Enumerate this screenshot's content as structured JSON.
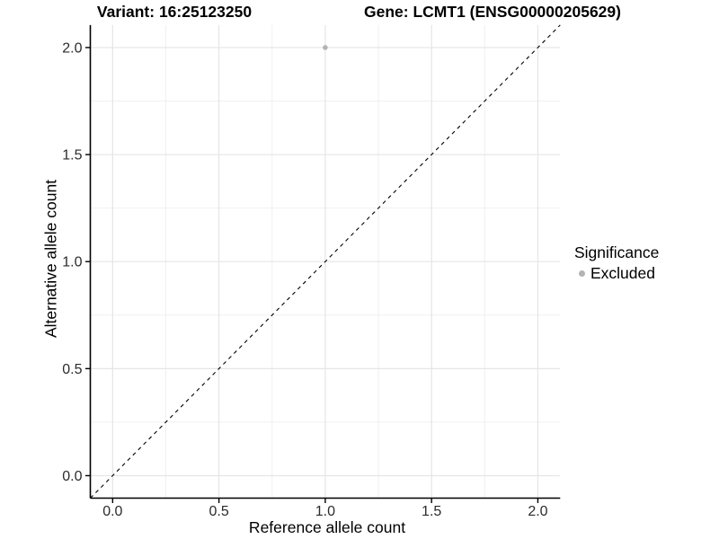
{
  "titles": {
    "variant": "Variant: 16:25123250",
    "gene": "Gene: LCMT1 (ENSG00000205629)"
  },
  "legend": {
    "title": "Significance",
    "items": [
      {
        "label": "Excluded",
        "color": "#b3b3b3"
      }
    ]
  },
  "chart_data": {
    "type": "scatter",
    "title": "Variant: 16:25123250 / Gene: LCMT1 (ENSG00000205629)",
    "xlabel": "Reference allele count",
    "ylabel": "Alternative allele count",
    "xlim": [
      -0.105,
      2.105
    ],
    "ylim": [
      -0.105,
      2.105
    ],
    "x_ticks": [
      0,
      0.5,
      1,
      1.5,
      2
    ],
    "y_ticks": [
      0,
      0.5,
      1,
      1.5,
      2
    ],
    "x_tick_labels": [
      "0.0",
      "0.5",
      "1.0",
      "1.5",
      "2.0"
    ],
    "y_tick_labels": [
      "0.0",
      "0.5",
      "1.0",
      "1.5",
      "2.0"
    ],
    "x_minor_ticks": [
      0.25,
      0.75,
      1.25,
      1.75
    ],
    "y_minor_ticks": [
      0.25,
      0.75,
      1.25,
      1.75
    ],
    "grid": "major+minor",
    "legend_position": "right",
    "series": [
      {
        "name": "Excluded",
        "color": "#b3b3b3",
        "points": [
          {
            "x": 1.0,
            "y": 2.0
          }
        ]
      }
    ],
    "reference_line": {
      "equation": "y = x",
      "style": "dashed",
      "color": "#000000"
    },
    "colors": {
      "background": "#ffffff",
      "grid_major": "#e5e5e5",
      "grid_minor": "#f0f0f0",
      "axis_line": "#000000",
      "tick_text": "#2b2b2b",
      "point": "#b3b3b3"
    }
  }
}
